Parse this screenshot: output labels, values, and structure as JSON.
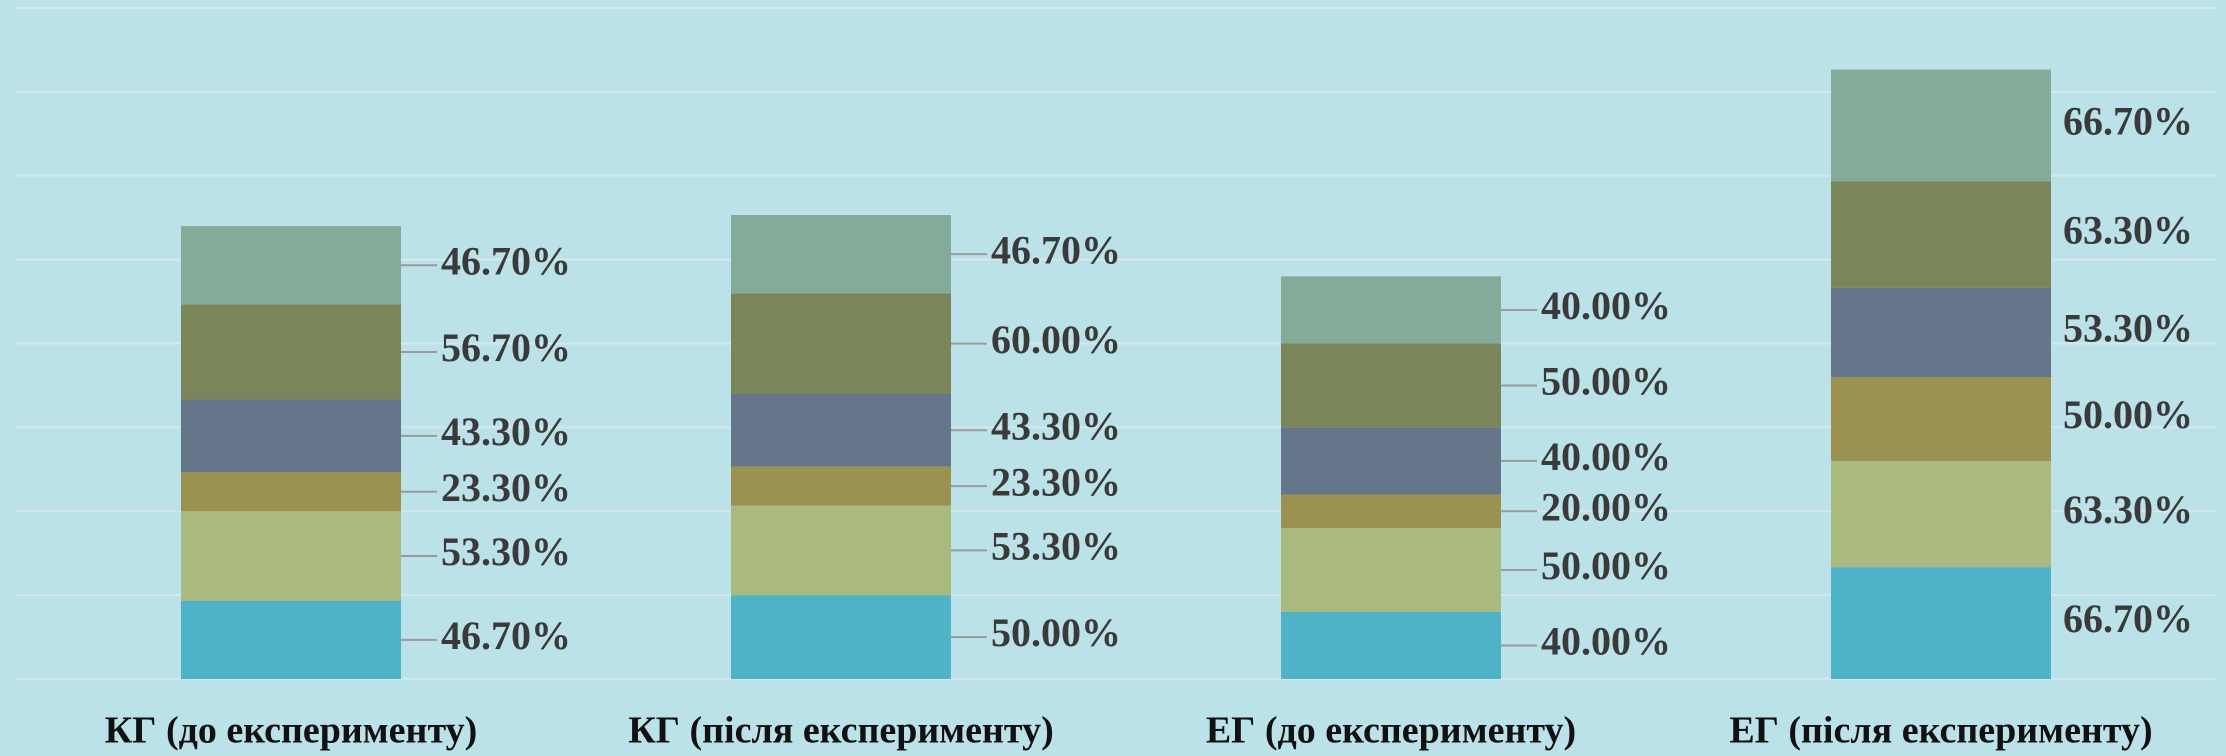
{
  "chart_data": {
    "type": "stacked_bar",
    "categories": [
      "КГ (до експерименту)",
      "КГ (після експерименту)",
      "ЕГ (до експерименту)",
      "ЕГ (після експерименту)"
    ],
    "series": [
      {
        "color": "#4fb3c8",
        "values": [
          46.7,
          50.0,
          40.0,
          66.7
        ],
        "value_labels": [
          "46.70%",
          "50.00%",
          "40.00%",
          "66.70%"
        ]
      },
      {
        "color": "#a9b97f",
        "values": [
          53.3,
          53.3,
          50.0,
          63.3
        ],
        "value_labels": [
          "53.30%",
          "53.30%",
          "50.00%",
          "63.30%"
        ]
      },
      {
        "color": "#9b9150",
        "values": [
          23.3,
          23.3,
          20.0,
          50.0
        ],
        "value_labels": [
          "23.30%",
          "23.30%",
          "20.00%",
          "50.00%"
        ]
      },
      {
        "color": "#66768a",
        "values": [
          43.3,
          43.3,
          40.0,
          53.3
        ],
        "value_labels": [
          "43.30%",
          "43.30%",
          "40.00%",
          "53.30%"
        ]
      },
      {
        "color": "#7a855a",
        "values": [
          56.7,
          60.0,
          50.0,
          63.3
        ],
        "value_labels": [
          "56.70%",
          "60.00%",
          "50.00%",
          "63.30%"
        ]
      },
      {
        "color": "#84ab9a",
        "values": [
          46.7,
          46.7,
          40.0,
          66.7
        ],
        "value_labels": [
          "46.70%",
          "46.70%",
          "40.00%",
          "66.70%"
        ]
      }
    ],
    "ylim": [
      0,
      400
    ],
    "yticks": [
      0,
      50,
      100,
      150,
      200,
      250,
      300,
      350,
      400
    ],
    "grid": true
  }
}
